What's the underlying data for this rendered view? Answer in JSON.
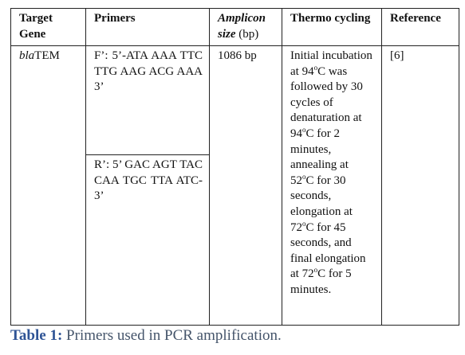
{
  "table": {
    "headers": [
      "Target Gene",
      "Primers",
      {
        "italic": "Amplicon size",
        "rest": "(bp)"
      },
      "Thermo cycling",
      "Reference"
    ],
    "rows": [
      [
        {
          "italic": "bla",
          "rest": "TEM"
        },
        [
          "F’: 5’-ATA AAA TTC TTG AAG ACG AAA 3’",
          "R’: 5’ GAC AGT TAC CAA TGC TTA ATC-3’"
        ],
        "1086 bp",
        [
          "Initial incubation at 94",
          "o",
          "C was followed by 30 cycles of denaturation at 94",
          "o",
          "C for 2 minutes, annealing at 52",
          "o",
          "C for 30 seconds, elongation at 72",
          "o",
          "C for 45 seconds, and final elongation at 72",
          "o",
          "C for 5 minutes."
        ],
        "[6]"
      ]
    ]
  },
  "caption": {
    "label": "Table 1:",
    "text": "Primers used in PCR amplification."
  }
}
